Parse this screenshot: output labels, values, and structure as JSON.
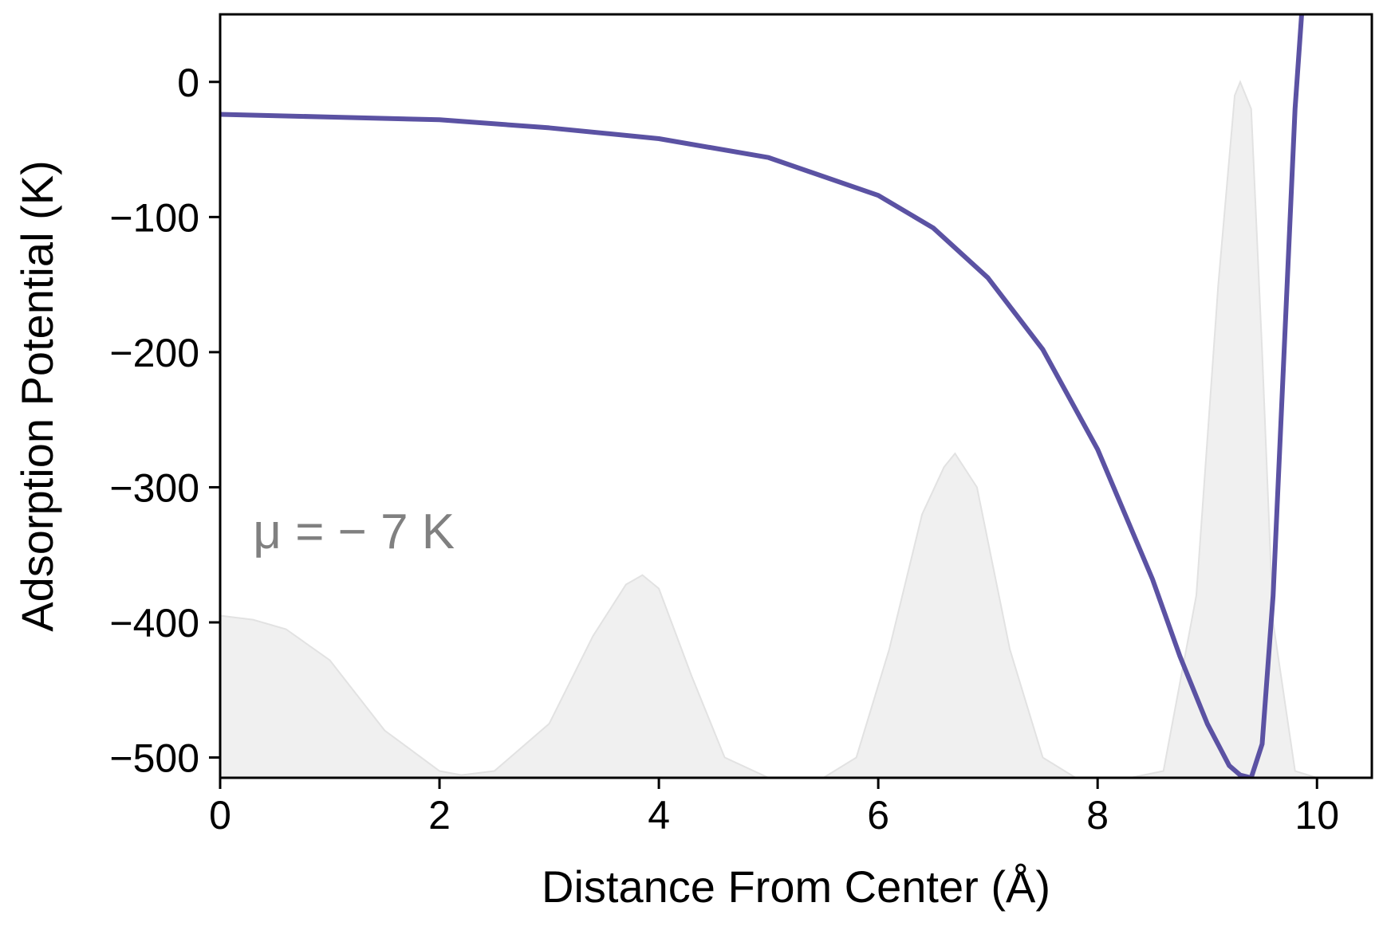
{
  "chart_data": {
    "type": "line",
    "title": "",
    "xlabel": "Distance From Center (Å)",
    "ylabel": "Adsorption Potential  (K)",
    "xlim": [
      0,
      10.5
    ],
    "ylim": [
      -515,
      50
    ],
    "xticks": [
      0,
      2,
      4,
      6,
      8,
      10
    ],
    "xtick_labels": [
      "0",
      "2",
      "4",
      "6",
      "8",
      "10"
    ],
    "yticks": [
      0,
      -100,
      -200,
      -300,
      -400,
      -500
    ],
    "ytick_labels": [
      "0",
      "−100",
      "−200",
      "−300",
      "−400",
      "−500"
    ],
    "grid": false,
    "annotation": "μ = − 7 K",
    "colors": {
      "line": "#5b52a3",
      "fill": "#f0f0f0",
      "fill_edge": "#e2e2e2",
      "annotation": "#808080"
    },
    "series": [
      {
        "kind": "line",
        "x": [
          0,
          1,
          2,
          3,
          4,
          5,
          6,
          6.5,
          7,
          7.5,
          8,
          8.5,
          8.75,
          9,
          9.2,
          9.3,
          9.4,
          9.5,
          9.6,
          9.7,
          9.8,
          9.86
        ],
        "y": [
          -24,
          -26,
          -28,
          -34,
          -42,
          -56,
          -84,
          -108,
          -145,
          -198,
          -272,
          -368,
          -425,
          -475,
          -506,
          -513,
          -515,
          -490,
          -380,
          -200,
          -20,
          50
        ]
      },
      {
        "kind": "area",
        "x": [
          0,
          0.1,
          0.3,
          0.6,
          1.0,
          1.5,
          2.0,
          2.2,
          2.5,
          3.0,
          3.4,
          3.7,
          3.85,
          4.0,
          4.3,
          4.6,
          5.0,
          5.2,
          5.5,
          5.8,
          6.1,
          6.4,
          6.6,
          6.7,
          6.9,
          7.2,
          7.5,
          7.8,
          8.0,
          8.3,
          8.6,
          8.9,
          9.1,
          9.25,
          9.3,
          9.4,
          9.5,
          9.6,
          9.8,
          10.0
        ],
        "y": [
          -395,
          -396,
          -398,
          -405,
          -428,
          -480,
          -510,
          -513,
          -510,
          -475,
          -410,
          -372,
          -365,
          -375,
          -440,
          -500,
          -515,
          -515,
          -515,
          -500,
          -420,
          -320,
          -285,
          -275,
          -300,
          -420,
          -500,
          -515,
          -515,
          -515,
          -510,
          -380,
          -150,
          -10,
          0,
          -20,
          -200,
          -400,
          -510,
          -515
        ]
      }
    ]
  }
}
